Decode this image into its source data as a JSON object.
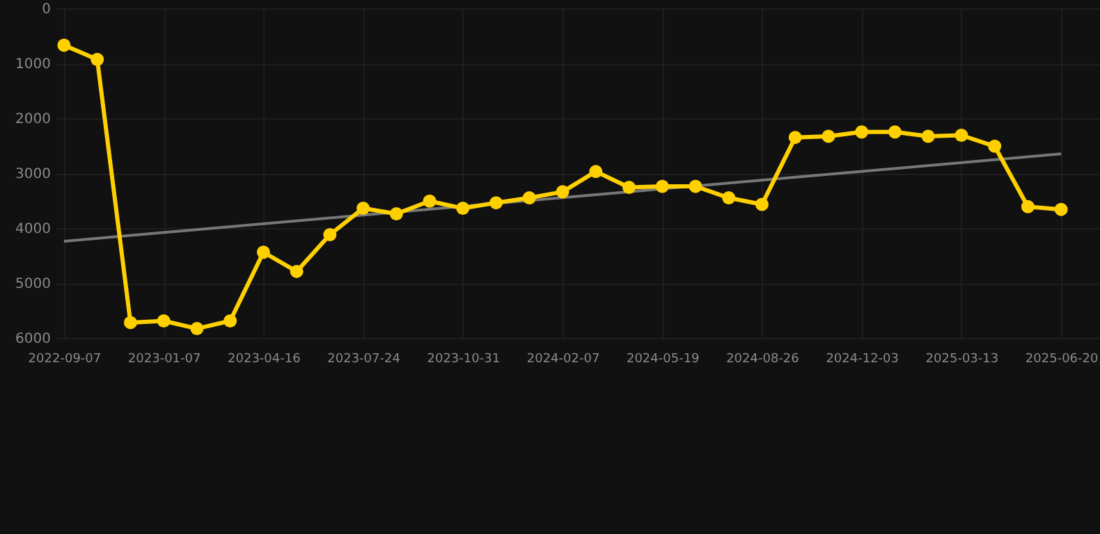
{
  "chart_data": {
    "type": "line",
    "categories": [
      "2022-09-07",
      null,
      null,
      "2023-01-07",
      null,
      null,
      "2023-04-16",
      null,
      null,
      "2023-07-24",
      null,
      null,
      "2023-10-31",
      null,
      null,
      "2024-02-07",
      null,
      null,
      "2024-05-19",
      null,
      null,
      "2024-08-26",
      null,
      null,
      "2024-12-03",
      null,
      null,
      "2025-03-13",
      null,
      null,
      "2025-06-20"
    ],
    "series": [
      {
        "color": "#ffd000",
        "marker": "circle",
        "values": [
          670,
          930,
          5720,
          5690,
          5830,
          5690,
          4440,
          4790,
          4120,
          3640,
          3740,
          3510,
          3640,
          3540,
          3450,
          3340,
          2970,
          3260,
          3240,
          3240,
          3450,
          3570,
          2350,
          2330,
          2250,
          2250,
          2330,
          2310,
          2510,
          3610,
          3660
        ]
      },
      {
        "type": "line",
        "color": "#777777",
        "marker": "none",
        "values": [
          4240,
          null,
          null,
          null,
          null,
          null,
          null,
          null,
          null,
          null,
          null,
          null,
          null,
          null,
          null,
          null,
          null,
          null,
          null,
          null,
          null,
          null,
          null,
          null,
          null,
          null,
          null,
          null,
          null,
          null,
          2650
        ]
      }
    ],
    "ylim": [
      6000,
      0
    ],
    "yticks": [
      0,
      1000,
      2000,
      3000,
      4000,
      5000,
      6000
    ],
    "grid": true
  }
}
